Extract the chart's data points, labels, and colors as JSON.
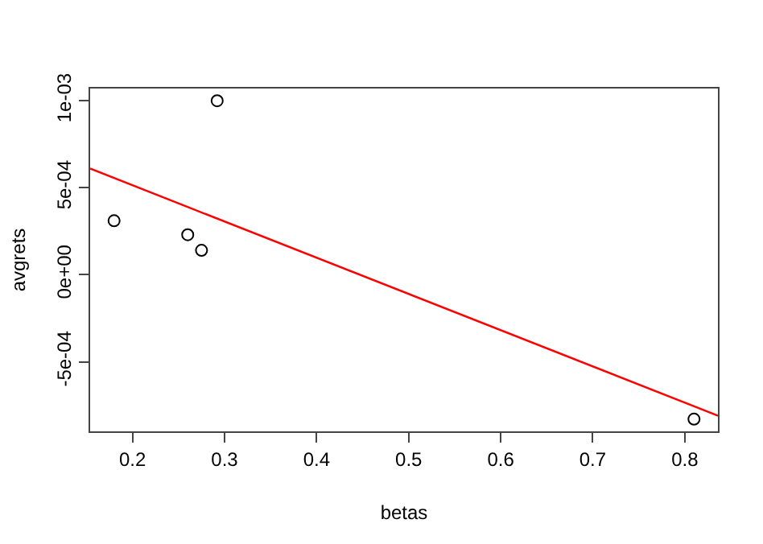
{
  "chart_data": {
    "type": "scatter",
    "xlabel": "betas",
    "ylabel": "avgrets",
    "grid": false,
    "legend": false,
    "xlim": [
      0.154,
      0.836
    ],
    "xticks": [
      0.2,
      0.3,
      0.4,
      0.5,
      0.6,
      0.7,
      0.8
    ],
    "ylim": [
      -0.0009,
      0.00107
    ],
    "yticks": [
      {
        "value": -0.0005,
        "label": "-5e-04"
      },
      {
        "value": 0,
        "label": "0e+00"
      },
      {
        "value": 0.0005,
        "label": "5e-04"
      },
      {
        "value": 0.001,
        "label": "1e-03"
      }
    ],
    "series": [
      {
        "marker": "circle",
        "color": "#000000",
        "x": [
          0.18,
          0.26,
          0.275,
          0.292,
          0.81
        ],
        "values": [
          0.00031,
          0.00023,
          0.00014,
          0.001,
          -0.00083
        ]
      },
      {
        "type": "line",
        "marker": "none",
        "color": "#ff0000",
        "x": [
          0.154,
          0.836
        ],
        "values": [
          0.00061,
          -0.00081
        ]
      }
    ]
  }
}
